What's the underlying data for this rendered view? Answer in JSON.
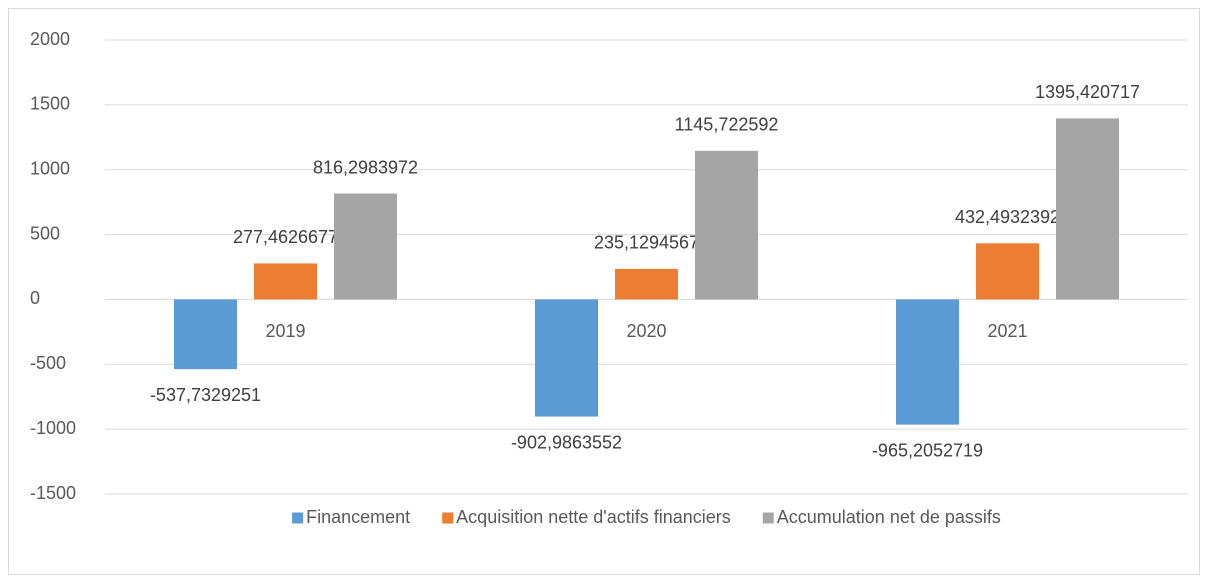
{
  "chart_data": {
    "type": "bar",
    "categories": [
      "2019",
      "2020",
      "2021"
    ],
    "series": [
      {
        "name": "Financement",
        "color": "#5b9bd5",
        "values": [
          -537.7329251,
          -902.9863552,
          -965.2052719
        ],
        "value_labels": [
          "-537,7329251",
          "-902,9863552",
          "-965,2052719"
        ]
      },
      {
        "name": "Acquisition nette d'actifs financiers",
        "color": "#ed7d31",
        "values": [
          277.4626677,
          235.1294567,
          432.4932392
        ],
        "value_labels": [
          "277,4626677",
          "235,1294567",
          "432,4932392"
        ]
      },
      {
        "name": "Accumulation net de passifs",
        "color": "#a5a5a5",
        "values": [
          816.2983972,
          1145.722592,
          1395.420717
        ],
        "value_labels": [
          "816,2983972",
          "1145,722592",
          "1395,420717"
        ]
      }
    ],
    "ylim": [
      -1500,
      2000
    ],
    "yticks": [
      -1500,
      -1000,
      -500,
      0,
      500,
      1000,
      1500,
      2000
    ],
    "grid": true,
    "legend": "bottom"
  }
}
